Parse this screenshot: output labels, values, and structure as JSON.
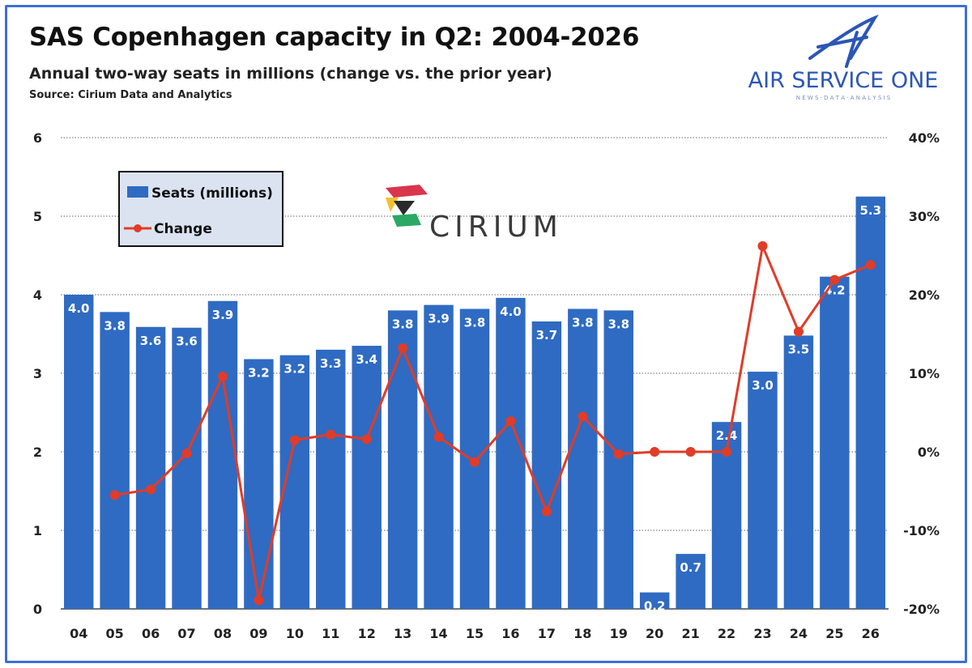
{
  "header": {
    "title": "SAS Copenhagen capacity in Q2: 2004-2026",
    "subtitle": "Annual two-way seats in millions (change vs. the prior year)",
    "source": "Source: Cirium Data and Analytics"
  },
  "branding": {
    "publisher_name": "AIR SERVICE ONE",
    "publisher_tagline": "N E W S  ·  D A T A  ·  A N A L Y S I S",
    "data_partner": "CIRIUM"
  },
  "colors": {
    "bar": "#2f6bc2",
    "line": "#e03c28",
    "frame": "#3f6fd8",
    "legend_bg": "#dbe3f1",
    "publisher": "#2b56b5"
  },
  "chart_data": {
    "type": "bar",
    "categories": [
      "04",
      "05",
      "06",
      "07",
      "08",
      "09",
      "10",
      "11",
      "12",
      "13",
      "14",
      "15",
      "16",
      "17",
      "18",
      "19",
      "20",
      "21",
      "22",
      "23",
      "24",
      "25",
      "26"
    ],
    "series": [
      {
        "name": "Seats (millions)",
        "type": "bar",
        "axis": "left",
        "values": [
          4.0,
          3.78,
          3.59,
          3.58,
          3.92,
          3.18,
          3.23,
          3.3,
          3.35,
          3.8,
          3.87,
          3.82,
          3.96,
          3.66,
          3.82,
          3.8,
          0.21,
          0.7,
          2.38,
          3.02,
          3.48,
          4.23,
          5.25
        ],
        "data_labels": [
          "4.0",
          "3.8",
          "3.6",
          "3.6",
          "3.9",
          "3.2",
          "3.2",
          "3.3",
          "3.4",
          "3.8",
          "3.9",
          "3.8",
          "4.0",
          "3.7",
          "3.8",
          "3.8",
          "0.2",
          "0.7",
          "2.4",
          "3.0",
          "3.5",
          "4.2",
          "5.3"
        ]
      },
      {
        "name": "Change",
        "type": "line",
        "axis": "right",
        "values": [
          null,
          -5.5,
          -4.8,
          -0.2,
          9.6,
          -18.9,
          1.5,
          2.2,
          1.6,
          13.2,
          1.9,
          -1.3,
          3.9,
          -7.6,
          4.5,
          -0.3,
          0.0,
          0.0,
          0.0,
          26.2,
          15.3,
          21.9,
          23.8
        ]
      }
    ],
    "yaxis_left": {
      "ticks": [
        "0",
        "1",
        "2",
        "3",
        "4",
        "5",
        "6"
      ],
      "min": 0,
      "max": 6
    },
    "yaxis_right": {
      "ticks": [
        "-20%",
        "-10%",
        "0%",
        "10%",
        "20%",
        "30%",
        "40%"
      ],
      "min": -20,
      "max": 40
    },
    "grid": "horizontal-dotted",
    "legend_position": "top-left"
  }
}
